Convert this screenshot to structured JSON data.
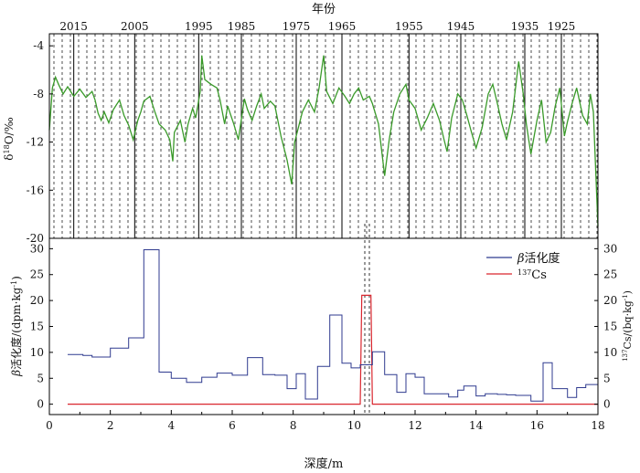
{
  "chart_data": [
    {
      "type": "line",
      "panel": "top",
      "top_axis_label": "年份",
      "year_ticks": [
        "2015",
        "2005",
        "1995",
        "1985",
        "1975",
        "1965",
        "1955",
        "1945",
        "1935",
        "1925"
      ],
      "year_tick_depths_m": [
        0.8,
        2.8,
        4.9,
        6.3,
        8.1,
        9.6,
        11.8,
        13.5,
        15.6,
        16.8
      ],
      "ylabel": "δ18O/‰",
      "ylim": [
        -20,
        -3
      ],
      "yticks": [
        -4,
        -8,
        -12,
        -16,
        -20
      ],
      "xlim": [
        0,
        18
      ],
      "series": [
        {
          "color": "#3a9a2a",
          "x": [
            0.0,
            0.1,
            0.2,
            0.3,
            0.45,
            0.6,
            0.8,
            1.0,
            1.2,
            1.4,
            1.5,
            1.6,
            1.7,
            1.8,
            1.95,
            2.1,
            2.3,
            2.45,
            2.6,
            2.75,
            2.9,
            3.0,
            3.1,
            3.3,
            3.45,
            3.6,
            3.8,
            3.95,
            4.05,
            4.1,
            4.3,
            4.45,
            4.55,
            4.7,
            4.8,
            4.95,
            5.0,
            5.1,
            5.3,
            5.5,
            5.6,
            5.75,
            5.85,
            6.05,
            6.2,
            6.4,
            6.5,
            6.65,
            6.8,
            6.95,
            7.05,
            7.25,
            7.4,
            7.6,
            7.8,
            7.95,
            8.05,
            8.3,
            8.5,
            8.7,
            8.85,
            9.0,
            9.1,
            9.3,
            9.5,
            9.7,
            9.85,
            10.0,
            10.15,
            10.3,
            10.5,
            10.6,
            10.8,
            11.0,
            11.15,
            11.3,
            11.5,
            11.7,
            11.8,
            12.0,
            12.2,
            12.4,
            12.6,
            12.8,
            12.95,
            13.05,
            13.2,
            13.4,
            13.55,
            13.7,
            13.85,
            14.0,
            14.2,
            14.4,
            14.55,
            14.7,
            14.85,
            15.0,
            15.2,
            15.4,
            15.55,
            15.65,
            15.8,
            16.0,
            16.15,
            16.3,
            16.45,
            16.6,
            16.75,
            16.9,
            17.0,
            17.15,
            17.3,
            17.5,
            17.65,
            17.75,
            17.85,
            18.0
          ],
          "y": [
            -11,
            -7.5,
            -6.6,
            -7.2,
            -8.0,
            -7.4,
            -8.2,
            -7.6,
            -8.3,
            -7.8,
            -8.5,
            -9.6,
            -10.2,
            -9.5,
            -10.4,
            -9.3,
            -8.5,
            -9.8,
            -10.6,
            -11.8,
            -10.2,
            -9.5,
            -8.6,
            -8.2,
            -9.4,
            -10.5,
            -11.0,
            -11.8,
            -13.6,
            -11.2,
            -10.2,
            -12.0,
            -10.5,
            -9.2,
            -10.0,
            -7.8,
            -4.8,
            -6.8,
            -7.2,
            -7.5,
            -8.5,
            -10.5,
            -9.0,
            -10.5,
            -11.8,
            -8.4,
            -9.3,
            -10.2,
            -9.0,
            -8.0,
            -9.2,
            -8.6,
            -9.0,
            -11.5,
            -13.5,
            -15.5,
            -12.0,
            -9.5,
            -8.5,
            -9.5,
            -7.5,
            -4.8,
            -7.8,
            -8.8,
            -7.5,
            -8.2,
            -8.8,
            -8.0,
            -7.5,
            -8.5,
            -8.2,
            -8.8,
            -10.5,
            -14.8,
            -11.8,
            -9.5,
            -8.0,
            -7.2,
            -8.5,
            -9.2,
            -11.0,
            -10.0,
            -8.8,
            -10.2,
            -11.8,
            -12.8,
            -10.0,
            -8.0,
            -8.5,
            -9.8,
            -11.2,
            -12.5,
            -10.8,
            -8.0,
            -7.2,
            -8.8,
            -10.5,
            -11.8,
            -9.5,
            -5.3,
            -8.0,
            -10.5,
            -13.0,
            -10.2,
            -8.5,
            -12.0,
            -11.2,
            -9.0,
            -7.5,
            -11.5,
            -10.3,
            -8.8,
            -7.5,
            -9.8,
            -10.5,
            -8.0,
            -9.5,
            -19.0
          ]
        }
      ]
    },
    {
      "type": "line",
      "panel": "bottom",
      "xlabel": "深度/m",
      "ylabel": "β活化度/(dpm·kg-1)",
      "y2label": "137Cs/(bq·kg-1)",
      "xlim": [
        0,
        18
      ],
      "xticks": [
        0,
        2,
        4,
        6,
        8,
        10,
        12,
        14,
        16,
        18
      ],
      "ylim": [
        -2,
        32
      ],
      "yticks": [
        0,
        5,
        10,
        15,
        20,
        25,
        30
      ],
      "y2ticks": [
        0,
        5,
        10,
        15,
        20,
        25,
        30
      ],
      "legend_position": "top-right",
      "series": [
        {
          "name": "β活化度",
          "color": "#2f3a8f",
          "step": true,
          "x": [
            0.6,
            1.1,
            1.4,
            2.0,
            2.6,
            3.1,
            3.6,
            4.0,
            4.5,
            5.0,
            5.5,
            6.0,
            6.5,
            7.0,
            7.4,
            7.8,
            8.1,
            8.4,
            8.8,
            9.2,
            9.6,
            9.9,
            10.2,
            10.6,
            11.0,
            11.4,
            11.7,
            12.0,
            12.3,
            12.8,
            13.1,
            13.4,
            13.6,
            14.0,
            14.3,
            14.7,
            15.0,
            15.3,
            15.8,
            16.2,
            16.5,
            17.0,
            17.3,
            17.6,
            18.0
          ],
          "values": [
            9.6,
            9.4,
            9.1,
            10.8,
            12.8,
            29.8,
            6.2,
            5.0,
            4.2,
            5.2,
            6.0,
            5.6,
            9.0,
            5.7,
            5.6,
            3.0,
            5.9,
            1.0,
            7.3,
            17.2,
            7.9,
            7.0,
            7.6,
            10.1,
            5.7,
            2.3,
            5.9,
            5.2,
            2.0,
            2.0,
            1.4,
            2.7,
            3.5,
            1.6,
            2.0,
            1.9,
            1.8,
            1.7,
            0.6,
            8.0,
            3.0,
            1.3,
            3.2,
            3.8,
            2.0
          ]
        },
        {
          "name": "137Cs",
          "color": "#d9262e",
          "step": true,
          "x": [
            0.6,
            10.2,
            10.25,
            10.55,
            10.6,
            18.0
          ],
          "values": [
            0,
            0,
            21,
            21,
            0,
            0
          ]
        }
      ],
      "reference_lines_x": [
        10.35,
        10.5
      ]
    }
  ]
}
